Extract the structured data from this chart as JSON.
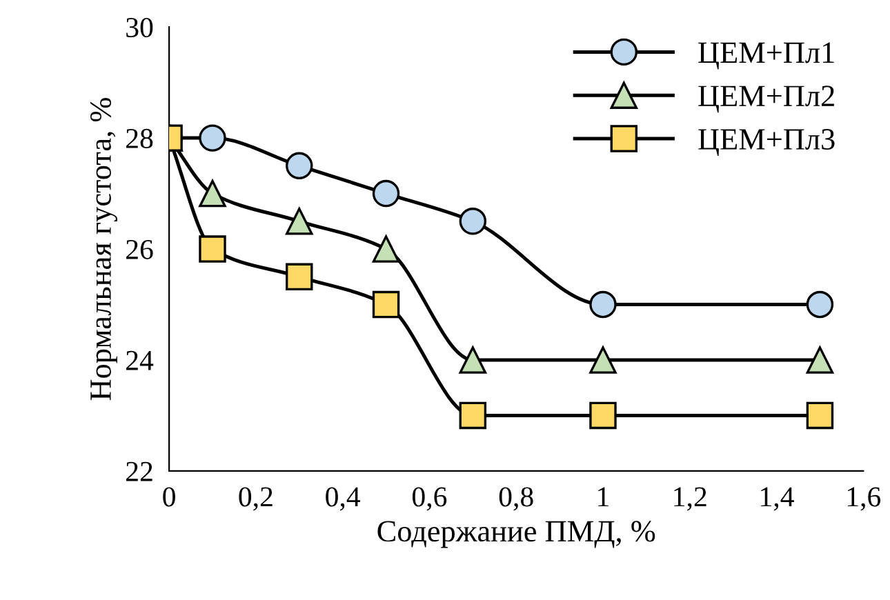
{
  "chart_data": {
    "type": "line",
    "xlabel": "Содержание ПМД, %",
    "ylabel": "Нормальная густота, %",
    "x": [
      0,
      0.1,
      0.3,
      0.5,
      0.7,
      1,
      1.5
    ],
    "series": [
      {
        "name": "ЦЕМ+Пл1",
        "color": "#bdd7ee",
        "marker": "circle",
        "values": [
          28,
          28,
          27.5,
          27,
          26.5,
          25,
          25
        ]
      },
      {
        "name": "ЦЕМ+Пл2",
        "color": "#c5e0b4",
        "marker": "triangle",
        "values": [
          28,
          27,
          26.5,
          26,
          24,
          24,
          24
        ]
      },
      {
        "name": "ЦЕМ+Пл3",
        "color": "#ffd966",
        "marker": "square",
        "values": [
          28,
          26,
          25.5,
          25,
          23,
          23,
          23
        ]
      }
    ],
    "xlim": [
      0,
      1.6
    ],
    "xticks": [
      0,
      {
        "value": 0.2,
        "label": "0,2"
      },
      {
        "value": 0.4,
        "label": "0,4"
      },
      {
        "value": 0.6,
        "label": "0,6"
      },
      {
        "value": 0.8,
        "label": "0,8"
      },
      1,
      {
        "value": 1.2,
        "label": "1,2"
      },
      {
        "value": 1.4,
        "label": "1,4"
      },
      {
        "value": 1.6,
        "label": "1,6"
      }
    ],
    "ylim": [
      22,
      30
    ],
    "yticks": [
      22,
      24,
      26,
      28,
      30
    ],
    "grid": false,
    "legend": "top right",
    "line_style": "solid"
  }
}
